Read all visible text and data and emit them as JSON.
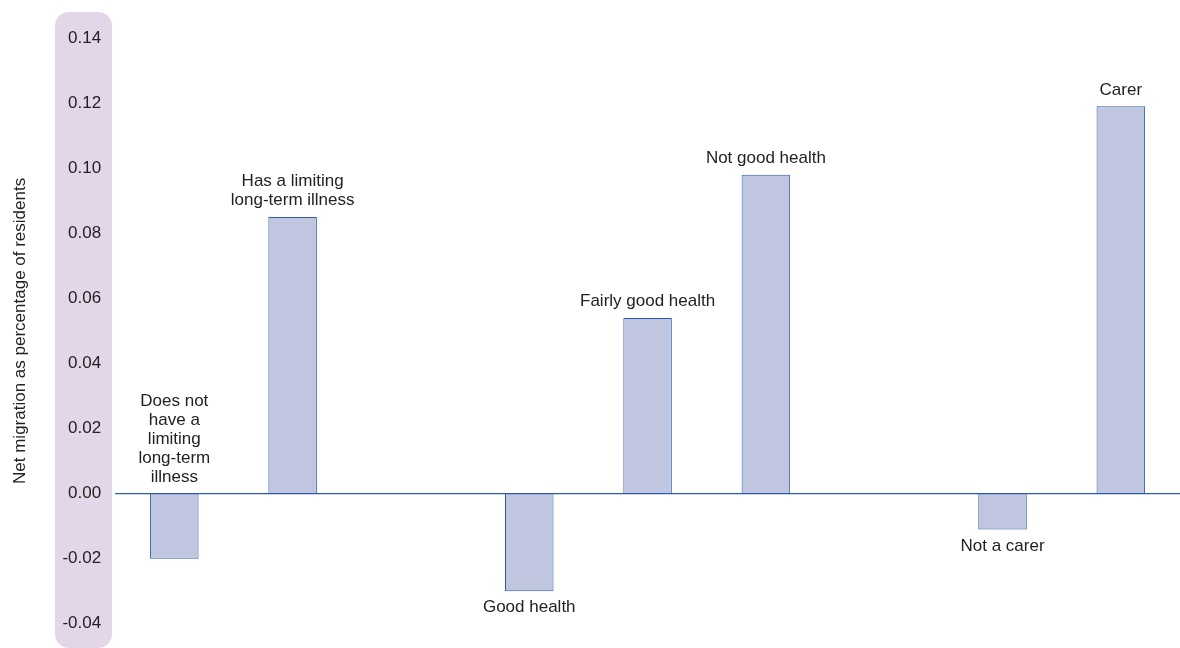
{
  "chart_data": {
    "type": "bar",
    "ylabel": "Net migration as percentage of residents",
    "categories": [
      "Does not have a limiting long-term illness",
      "Has a limiting long-term illness",
      null,
      "Good health",
      "Fairly good health",
      "Not good health",
      null,
      "Not a carer",
      "Carer"
    ],
    "values": [
      -0.02,
      0.085,
      null,
      -0.03,
      0.054,
      0.098,
      null,
      -0.011,
      0.119
    ],
    "color": "#c0c5e0",
    "ylim": [
      -0.04,
      0.14
    ],
    "yticks": [
      {
        "value": -0.04,
        "label": "-0.04"
      },
      {
        "value": -0.02,
        "label": "-0.02"
      },
      {
        "value": 0,
        "label": "0.00"
      },
      {
        "value": 0.02,
        "label": "0.02"
      },
      {
        "value": 0.04,
        "label": "0.04"
      },
      {
        "value": 0.06,
        "label": "0.06"
      },
      {
        "value": 0.08,
        "label": "0.08"
      },
      {
        "value": 0.1,
        "label": "0.10"
      },
      {
        "value": 0.12,
        "label": "0.12"
      },
      {
        "value": 0.14,
        "label": "0.14"
      }
    ],
    "ref_lines": [
      {
        "axis": "y",
        "value": 0,
        "color": "#2a5caa"
      }
    ],
    "tick_labels": "y",
    "legend": false
  }
}
